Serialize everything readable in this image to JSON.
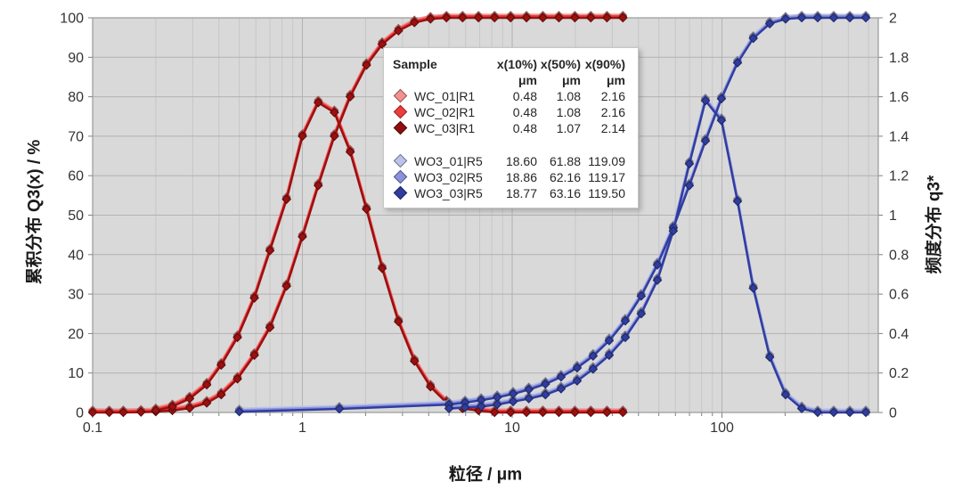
{
  "chart_data": {
    "type": "line",
    "title": "",
    "x_axis": {
      "label": "粒径 / μm",
      "scale": "log",
      "min": 0.1,
      "max": 556,
      "tick_values": [
        0.1,
        1,
        10,
        100
      ],
      "tick_labels": [
        "0.1",
        "1",
        "10",
        "100"
      ]
    },
    "y_left": {
      "label": "累积分布 Q3(x) / %",
      "min": 0,
      "max": 100,
      "tick_step": 10,
      "tick_labels": [
        "0",
        "10",
        "20",
        "30",
        "40",
        "50",
        "60",
        "70",
        "80",
        "90",
        "100"
      ]
    },
    "y_right": {
      "label": "频度分布 q3*",
      "min": 0,
      "max": 2,
      "tick_labels": [
        "0",
        "0.2",
        "0.4",
        "0.6",
        "0.8",
        "1",
        "1.2",
        "1.4",
        "1.6",
        "1.8",
        "2"
      ]
    },
    "style": {
      "plot_bg": "#d9d9d9",
      "grid_major": "#b2b2b2",
      "grid_minor": "#c7c7c7",
      "plot_border": "#999999",
      "tick_color": "#7f7f7f",
      "text_color": "#333333"
    },
    "legend": {
      "header": [
        "Sample",
        "x(10%)",
        "x(50%)",
        "x(90%)"
      ],
      "unit": "μm",
      "rows": [
        {
          "name": "WC_01|R1",
          "color": "#F29191",
          "x10": "0.48",
          "x50": "1.08",
          "x90": "2.16"
        },
        {
          "name": "WC_02|R1",
          "color": "#EE3D3D",
          "x10": "0.48",
          "x50": "1.08",
          "x90": "2.16"
        },
        {
          "name": "WC_03|R1",
          "color": "#8F0F0F",
          "x10": "0.48",
          "x50": "1.07",
          "x90": "2.14"
        },
        {
          "name": "WO3_01|R5",
          "color": "#BCC2EA",
          "x10": "18.60",
          "x50": "61.88",
          "x90": "119.09"
        },
        {
          "name": "WO3_02|R5",
          "color": "#8A92DB",
          "x10": "18.86",
          "x50": "62.16",
          "x90": "119.17"
        },
        {
          "name": "WO3_03|R5",
          "color": "#303D9F",
          "x10": "18.77",
          "x50": "63.16",
          "x90": "119.50"
        }
      ]
    },
    "groups": [
      {
        "id": "WC",
        "series": [
          {
            "name": "WC_01|R1",
            "color": "#F29191"
          },
          {
            "name": "WC_02|R1",
            "color": "#EE3D3D"
          },
          {
            "name": "WC_03|R1",
            "color": "#9B1010"
          }
        ],
        "cumulative": [
          [
            0.1,
            0
          ],
          [
            0.12,
            0
          ],
          [
            0.14,
            0
          ],
          [
            0.17,
            0.1
          ],
          [
            0.2,
            0.2
          ],
          [
            0.24,
            0.5
          ],
          [
            0.29,
            1.1
          ],
          [
            0.35,
            2.4
          ],
          [
            0.41,
            4.5
          ],
          [
            0.49,
            8.5
          ],
          [
            0.59,
            14.5
          ],
          [
            0.7,
            21.5
          ],
          [
            0.84,
            32
          ],
          [
            1.0,
            44.5
          ],
          [
            1.19,
            57.5
          ],
          [
            1.42,
            70
          ],
          [
            1.69,
            80
          ],
          [
            2.02,
            88
          ],
          [
            2.4,
            93.3
          ],
          [
            2.87,
            96.7
          ],
          [
            3.42,
            98.8
          ],
          [
            4.08,
            99.7
          ],
          [
            4.86,
            100
          ],
          [
            5.8,
            100
          ],
          [
            6.91,
            100
          ],
          [
            8.24,
            100
          ],
          [
            9.83,
            100
          ],
          [
            11.7,
            100
          ],
          [
            14.0,
            100
          ],
          [
            16.7,
            100
          ],
          [
            19.9,
            100
          ],
          [
            23.7,
            100
          ],
          [
            28.3,
            100
          ],
          [
            33.7,
            100
          ]
        ],
        "density": [
          [
            0.2,
            0.01
          ],
          [
            0.24,
            0.03
          ],
          [
            0.29,
            0.07
          ],
          [
            0.35,
            0.14
          ],
          [
            0.41,
            0.24
          ],
          [
            0.49,
            0.38
          ],
          [
            0.59,
            0.58
          ],
          [
            0.7,
            0.82
          ],
          [
            0.84,
            1.08
          ],
          [
            1.0,
            1.4
          ],
          [
            1.19,
            1.57
          ],
          [
            1.42,
            1.52
          ],
          [
            1.69,
            1.32
          ],
          [
            2.02,
            1.03
          ],
          [
            2.4,
            0.73
          ],
          [
            2.87,
            0.46
          ],
          [
            3.42,
            0.26
          ],
          [
            4.08,
            0.13
          ],
          [
            4.86,
            0.05
          ],
          [
            5.8,
            0.02
          ],
          [
            6.91,
            0.01
          ],
          [
            8.24,
            0
          ],
          [
            9.83,
            0
          ],
          [
            11.7,
            0
          ],
          [
            14.0,
            0
          ],
          [
            16.7,
            0
          ],
          [
            19.9,
            0
          ],
          [
            23.7,
            0
          ],
          [
            28.3,
            0
          ],
          [
            33.7,
            0
          ]
        ]
      },
      {
        "id": "WO3",
        "series": [
          {
            "name": "WO3_01|R5",
            "color": "#BCC2EA"
          },
          {
            "name": "WO3_02|R5",
            "color": "#8A92DB"
          },
          {
            "name": "WO3_03|R5",
            "color": "#303D9F"
          }
        ],
        "cumulative": [
          [
            0.5,
            0.2
          ],
          [
            1.5,
            0.9
          ],
          [
            5.0,
            2.0
          ],
          [
            5.96,
            2.5
          ],
          [
            7.11,
            3.1
          ],
          [
            8.48,
            3.8
          ],
          [
            10.1,
            4.7
          ],
          [
            12.0,
            5.8
          ],
          [
            14.4,
            7.2
          ],
          [
            17.1,
            9.0
          ],
          [
            20.4,
            11.3
          ],
          [
            24.3,
            14.3
          ],
          [
            29.0,
            18.2
          ],
          [
            34.6,
            23.2
          ],
          [
            41.2,
            29.5
          ],
          [
            49.2,
            37.4
          ],
          [
            58.6,
            46.8
          ],
          [
            69.9,
            57.5
          ],
          [
            83.4,
            68.8
          ],
          [
            99.4,
            79.5
          ],
          [
            118.6,
            88.6
          ],
          [
            141,
            94.8
          ],
          [
            169,
            98.5
          ],
          [
            201,
            99.7
          ],
          [
            240,
            100
          ],
          [
            286,
            100
          ],
          [
            341,
            100
          ],
          [
            407,
            100
          ],
          [
            485,
            100
          ]
        ],
        "density": [
          [
            5.0,
            0.02
          ],
          [
            5.96,
            0.025
          ],
          [
            7.11,
            0.03
          ],
          [
            8.48,
            0.04
          ],
          [
            10.1,
            0.055
          ],
          [
            12.0,
            0.07
          ],
          [
            14.4,
            0.09
          ],
          [
            17.1,
            0.12
          ],
          [
            20.4,
            0.16
          ],
          [
            24.3,
            0.22
          ],
          [
            29.0,
            0.29
          ],
          [
            34.6,
            0.38
          ],
          [
            41.2,
            0.5
          ],
          [
            49.2,
            0.67
          ],
          [
            58.6,
            0.92
          ],
          [
            69.9,
            1.26
          ],
          [
            83.4,
            1.58
          ],
          [
            99.4,
            1.48
          ],
          [
            118.6,
            1.07
          ],
          [
            141,
            0.63
          ],
          [
            169,
            0.28
          ],
          [
            201,
            0.09
          ],
          [
            240,
            0.02
          ],
          [
            286,
            0
          ],
          [
            341,
            0
          ],
          [
            407,
            0
          ],
          [
            485,
            0
          ]
        ]
      }
    ]
  }
}
